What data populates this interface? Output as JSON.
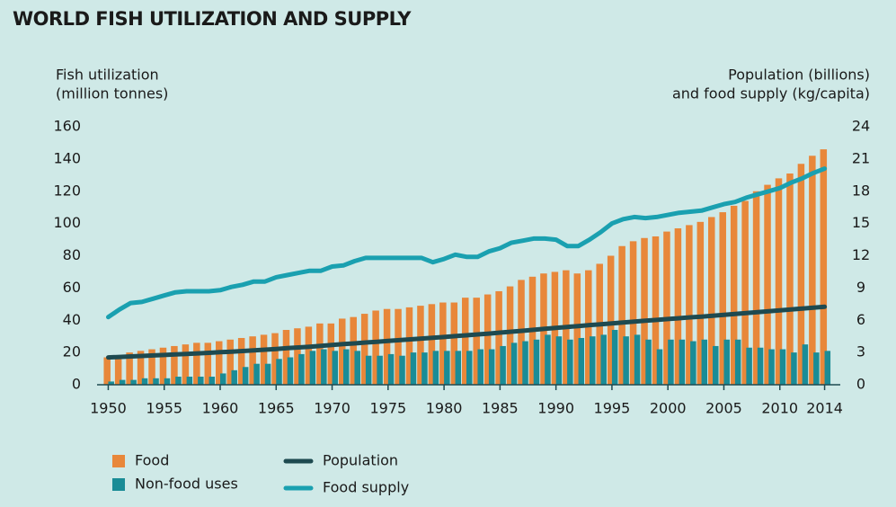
{
  "chart_data": {
    "type": "bar_line",
    "title": "WORLD FISH UTILIZATION AND SUPPLY",
    "y_label": [
      "Fish utilization",
      "(million tonnes)"
    ],
    "y2_label": [
      "Population (billions)",
      "and food supply (kg/capita)"
    ],
    "x": [
      1950,
      1951,
      1952,
      1953,
      1954,
      1955,
      1956,
      1957,
      1958,
      1959,
      1960,
      1961,
      1962,
      1963,
      1964,
      1965,
      1966,
      1967,
      1968,
      1969,
      1970,
      1971,
      1972,
      1973,
      1974,
      1975,
      1976,
      1977,
      1978,
      1979,
      1980,
      1981,
      1982,
      1983,
      1984,
      1985,
      1986,
      1987,
      1988,
      1989,
      1990,
      1991,
      1992,
      1993,
      1994,
      1995,
      1996,
      1997,
      1998,
      1999,
      2000,
      2001,
      2002,
      2003,
      2004,
      2005,
      2006,
      2007,
      2008,
      2009,
      2010,
      2011,
      2012,
      2013,
      2014
    ],
    "xlim": [
      1949,
      2015.4
    ],
    "xticks": [
      1950,
      1955,
      1960,
      1965,
      1970,
      1975,
      1980,
      1985,
      1990,
      1995,
      2000,
      2005,
      2010,
      2014
    ],
    "ylim": [
      0,
      160
    ],
    "yticks": [
      0,
      20,
      40,
      60,
      80,
      100,
      120,
      140,
      160
    ],
    "y2lim": [
      0,
      24
    ],
    "y2ticks": [
      0,
      3,
      6,
      9,
      12,
      15,
      18,
      21,
      24
    ],
    "series": [
      {
        "name": "Food",
        "kind": "bar",
        "color": "#e8873a",
        "values": [
          17,
          18,
          20,
          21,
          22,
          23,
          24,
          25,
          26,
          26,
          27,
          28,
          29,
          30,
          31,
          32,
          34,
          35,
          36,
          38,
          38,
          41,
          42,
          44,
          46,
          47,
          47,
          48,
          49,
          50,
          51,
          51,
          54,
          54,
          56,
          58,
          61,
          65,
          67,
          69,
          70,
          71,
          69,
          71,
          75,
          80,
          86,
          89,
          91,
          92,
          95,
          97,
          99,
          101,
          104,
          107,
          111,
          114,
          120,
          124,
          128,
          131,
          137,
          142,
          146
        ]
      },
      {
        "name": "Non-food uses",
        "kind": "bar",
        "color": "#1a8c96",
        "values": [
          2,
          3,
          3,
          4,
          4,
          4,
          5,
          5,
          5,
          5,
          7,
          9,
          11,
          13,
          13,
          16,
          17,
          19,
          21,
          22,
          21,
          22,
          21,
          18,
          18,
          19,
          18,
          20,
          20,
          21,
          21,
          21,
          21,
          22,
          22,
          24,
          26,
          27,
          28,
          31,
          30,
          28,
          29,
          30,
          31,
          34,
          30,
          31,
          28,
          22,
          28,
          28,
          27,
          28,
          24,
          28,
          28,
          23,
          23,
          22,
          22,
          20,
          25,
          20,
          21
        ]
      },
      {
        "name": "Population",
        "kind": "line",
        "axis": "y2",
        "color": "#1e4a50",
        "values": [
          2.54,
          2.58,
          2.63,
          2.68,
          2.73,
          2.77,
          2.82,
          2.87,
          2.92,
          2.97,
          3.03,
          3.08,
          3.14,
          3.2,
          3.26,
          3.33,
          3.4,
          3.47,
          3.54,
          3.62,
          3.7,
          3.78,
          3.85,
          3.93,
          4.0,
          4.08,
          4.15,
          4.22,
          4.3,
          4.37,
          4.44,
          4.52,
          4.6,
          4.68,
          4.76,
          4.85,
          4.93,
          5.02,
          5.11,
          5.2,
          5.29,
          5.38,
          5.46,
          5.55,
          5.63,
          5.71,
          5.79,
          5.87,
          5.95,
          6.03,
          6.11,
          6.19,
          6.27,
          6.34,
          6.42,
          6.51,
          6.59,
          6.67,
          6.75,
          6.83,
          6.92,
          7.0,
          7.09,
          7.17,
          7.25
        ]
      },
      {
        "name": "Food supply",
        "kind": "line",
        "axis": "y2",
        "color": "#1aa0b0",
        "values": [
          6.3,
          7.0,
          7.6,
          7.7,
          8.0,
          8.3,
          8.6,
          8.7,
          8.7,
          8.7,
          8.8,
          9.1,
          9.3,
          9.6,
          9.6,
          10.0,
          10.2,
          10.4,
          10.6,
          10.6,
          11.0,
          11.1,
          11.5,
          11.8,
          11.8,
          11.8,
          11.8,
          11.8,
          11.8,
          11.4,
          11.7,
          12.1,
          11.9,
          11.9,
          12.4,
          12.7,
          13.2,
          13.4,
          13.6,
          13.6,
          13.5,
          12.9,
          12.9,
          13.5,
          14.2,
          15.0,
          15.4,
          15.6,
          15.5,
          15.6,
          15.8,
          16.0,
          16.1,
          16.2,
          16.5,
          16.8,
          17.0,
          17.4,
          17.7,
          18.0,
          18.3,
          18.8,
          19.2,
          19.7,
          20.1
        ]
      }
    ]
  }
}
